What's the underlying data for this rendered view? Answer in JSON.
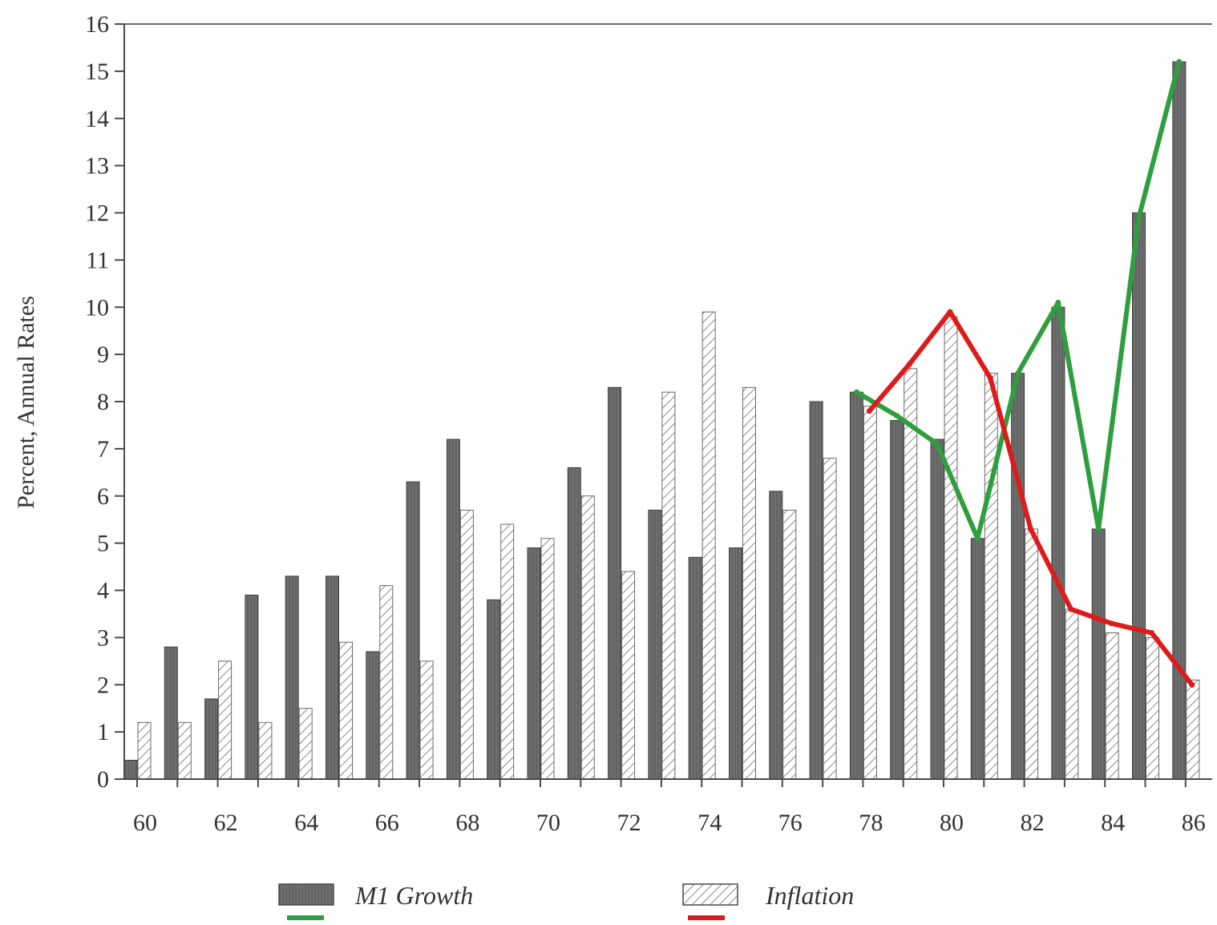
{
  "chart_data": {
    "type": "bar",
    "ylabel": "Percent, Annual Rates",
    "ylim": [
      0,
      16
    ],
    "yticks": [
      0,
      1,
      2,
      3,
      4,
      5,
      6,
      7,
      8,
      9,
      10,
      11,
      12,
      13,
      14,
      15,
      16
    ],
    "categories": [
      "60",
      "61",
      "62",
      "63",
      "64",
      "65",
      "66",
      "67",
      "68",
      "69",
      "70",
      "71",
      "72",
      "73",
      "74",
      "75",
      "76",
      "77",
      "78",
      "79",
      "80",
      "81",
      "82",
      "83",
      "84",
      "85",
      "86"
    ],
    "xtick_labels": [
      "60",
      "62",
      "64",
      "66",
      "68",
      "70",
      "72",
      "74",
      "76",
      "78",
      "80",
      "82",
      "84",
      "86"
    ],
    "series": [
      {
        "name": "M1 Growth",
        "style": "solid-dark",
        "values": [
          0.4,
          2.8,
          1.7,
          3.9,
          4.3,
          4.3,
          2.7,
          6.3,
          7.2,
          3.8,
          4.9,
          6.6,
          8.3,
          5.7,
          4.7,
          4.9,
          6.1,
          8.0,
          8.2,
          7.6,
          7.2,
          5.1,
          8.6,
          10.0,
          5.3,
          12.0,
          15.2
        ]
      },
      {
        "name": "Inflation",
        "style": "hatched",
        "values": [
          1.2,
          1.2,
          2.5,
          1.2,
          1.5,
          2.9,
          4.1,
          2.5,
          5.7,
          5.4,
          5.1,
          6.0,
          4.4,
          8.2,
          9.9,
          8.3,
          5.7,
          6.8,
          7.9,
          8.7,
          9.8,
          8.6,
          5.3,
          3.6,
          3.1,
          3.0,
          2.1
        ]
      }
    ],
    "overlay_lines": [
      {
        "series": "M1 Growth",
        "color": "#2e9e3e",
        "x": [
          "78",
          "79",
          "80",
          "81",
          "82",
          "83",
          "84",
          "85",
          "86"
        ],
        "values": [
          8.2,
          7.7,
          7.1,
          5.1,
          8.6,
          10.1,
          5.3,
          11.9,
          15.2
        ]
      },
      {
        "series": "Inflation",
        "color": "#dd1b1b",
        "x": [
          "78",
          "79",
          "80",
          "81",
          "82",
          "83",
          "84",
          "85",
          "86"
        ],
        "values": [
          7.8,
          8.8,
          9.9,
          8.5,
          5.3,
          3.6,
          3.3,
          3.1,
          2.0
        ]
      }
    ],
    "legend": {
      "placement": "bottom",
      "entries": [
        {
          "label": "M1 Growth",
          "line_color": "#2e9e3e"
        },
        {
          "label": "Inflation",
          "line_color": "#dd1b1b"
        }
      ]
    },
    "colors": {
      "m1_bar": "#6f6f6f",
      "inflation_bar_fill": "#ffffff",
      "inflation_hatch": "#8a8a8a",
      "axis": "#4a4a4a"
    }
  }
}
